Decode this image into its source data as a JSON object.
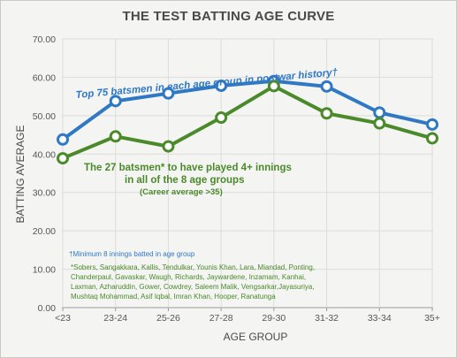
{
  "chart_data": {
    "type": "line",
    "title": "THE TEST BATTING AGE CURVE",
    "xlabel": "AGE GROUP",
    "ylabel": "BATTING AVERAGE",
    "ylim": [
      0,
      70
    ],
    "yticks": [
      "0.00",
      "10.00",
      "20.00",
      "30.00",
      "40.00",
      "50.00",
      "60.00",
      "70.00"
    ],
    "grid": true,
    "categories": [
      "<23",
      "23-24",
      "25-26",
      "27-28",
      "29-30",
      "31-32",
      "33-34",
      "35+"
    ],
    "series": [
      {
        "name": "Top 75 batsmen in each age group in postwar history†",
        "color": "#2f78c4",
        "values": [
          43.8,
          53.8,
          55.8,
          57.8,
          59.0,
          57.6,
          50.8,
          47.7
        ]
      },
      {
        "name": "The 27 batsmen* to have played 4+ innings in all of the 8 age groups",
        "color": "#4a8a2a",
        "values": [
          38.9,
          44.6,
          42.0,
          49.5,
          57.7,
          50.6,
          48.0,
          44.1
        ]
      }
    ],
    "annotations": {
      "blue_label": "Top 75 batsmen in each age group in postwar history†",
      "green_label_line1": "The 27 batsmen* to have played 4+ innings",
      "green_label_line2": "in all of the 8 age groups",
      "green_sub": "(Career average >35)",
      "footnote_dagger": "†Minimum 8 innings batted in age group",
      "footnote_star": [
        "*Sobers, Sangakkara, Kallis, Tendulkar, Younis Khan, Lara, Miandad, Ponting,",
        "Chanderpaul, Gavaskar, Waugh, Richards, Jaywardene, Inzamam, Kanhai,",
        "Laxman, Azharuddin, Gower, Cowdrey, Saleem Malik, Vengsarkar,Jayasuriya,",
        "Mushtaq Mohammad, Asif Iqbal, Imran Khan, Hooper, Ranatunga"
      ]
    }
  }
}
